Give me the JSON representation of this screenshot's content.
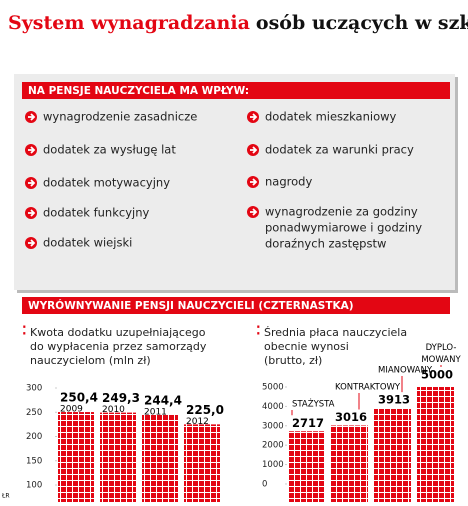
{
  "header": {
    "title_red": "System wynagradzania",
    "title_black": "osób uczących w szkołach"
  },
  "factors": {
    "heading": "NA PENSJE NAUCZYCIELA MA WPŁYW:",
    "left": [
      "wynagrodzenie zasadnicze",
      "dodatek za wysługę lat",
      "dodatek motywacyjny",
      "dodatek funkcyjny",
      "dodatek wiejski"
    ],
    "right": [
      [
        "dodatek mieszkaniowy"
      ],
      [
        "dodatek za warunki pracy"
      ],
      [
        "nagrody"
      ],
      [
        "wynagrodzenie za godziny",
        "ponadwymiarowe i godziny",
        "doraźnych zastępstw"
      ]
    ]
  },
  "section_heading": "WYRÓWNYWANIE PENSJI NAUCZYCIELI (CZTERNASTKA)",
  "credit": "ŁR",
  "chart_data": [
    {
      "type": "bar",
      "title": [
        "Kwota dodatku uzupełniającego",
        "do wypłacenia przez samorządy",
        "nauczycielom (mln zł)"
      ],
      "categories": [
        "2009",
        "2010",
        "2011",
        "2012"
      ],
      "values": [
        250.4,
        249.3,
        244.4,
        225.0
      ],
      "value_labels": [
        "250,4",
        "249,3",
        "244,4",
        "225,0"
      ],
      "color": "#e30613",
      "ylim": [
        65,
        300
      ],
      "yticks": [
        100,
        150,
        200,
        250,
        300
      ]
    },
    {
      "type": "bar",
      "title": [
        "Średnia płaca nauczyciela",
        "obecnie wynosi",
        "(brutto, zł)"
      ],
      "categories": [
        "STAŻYSTA",
        "KONTRAKTOWY",
        "MIANOWANY",
        "DYPLO-MOWANY"
      ],
      "values": [
        2717,
        3016,
        3913,
        5000
      ],
      "color": "#e30613",
      "ylim": [
        -930,
        5000
      ],
      "yticks": [
        0,
        1000,
        2000,
        3000,
        4000,
        5000
      ]
    }
  ]
}
